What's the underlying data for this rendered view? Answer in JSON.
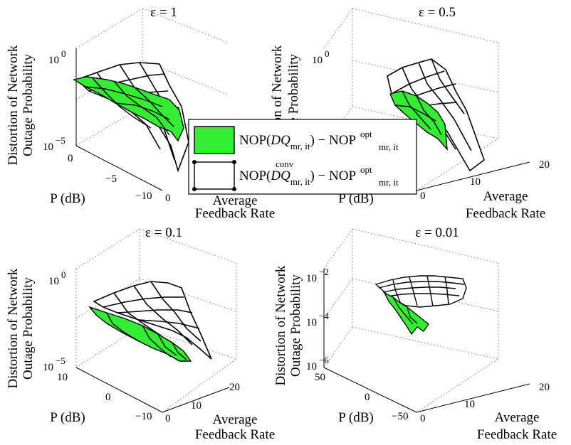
{
  "chart_data": [
    {
      "type": "surface",
      "title": "ε = 1",
      "zlabel_line1": "Distortion of Network",
      "zlabel_line2": "Outage Probability",
      "ylabel": "P (dB)",
      "xlabel_line1": "Average",
      "xlabel_line2": "Feedback Rate",
      "z_ticks": [
        {
          "base": "10",
          "exp": "0"
        },
        {
          "base": "10",
          "exp": "−5"
        }
      ],
      "p_ticks": [
        "0",
        "−5",
        "−10"
      ],
      "rate_ticks": [
        "0"
      ],
      "series": [
        {
          "name": "DQ",
          "style": "green-surface"
        },
        {
          "name": "DQconv",
          "style": "white-mesh"
        }
      ]
    },
    {
      "type": "surface",
      "title": "ε = 0.5",
      "zlabel_line1": "Distortion of Network",
      "zlabel_line2": "Outage Probability",
      "ylabel": "P (dB)",
      "xlabel_line1": "Average",
      "xlabel_line2": "Feedback Rate",
      "z_ticks": [
        {
          "base": "10",
          "exp": "0"
        }
      ],
      "p_ticks": [],
      "rate_ticks": [
        "0",
        "10",
        "20"
      ],
      "series": [
        {
          "name": "DQ",
          "style": "green-surface"
        },
        {
          "name": "DQconv",
          "style": "white-mesh"
        }
      ]
    },
    {
      "type": "surface",
      "title": "ε = 0.1",
      "zlabel_line1": "Distortion of Network",
      "zlabel_line2": "Outage Probability",
      "ylabel": "P (dB)",
      "xlabel_line1": "Average",
      "xlabel_line2": "Feedback Rate",
      "z_ticks": [
        {
          "base": "10",
          "exp": "0"
        },
        {
          "base": "10",
          "exp": "−5"
        }
      ],
      "p_ticks": [
        "10",
        "0",
        "−10"
      ],
      "rate_ticks": [
        "0",
        "10",
        "20"
      ],
      "series": [
        {
          "name": "DQ",
          "style": "green-surface"
        },
        {
          "name": "DQconv",
          "style": "white-mesh"
        }
      ]
    },
    {
      "type": "surface",
      "title": "ε = 0.01",
      "zlabel_line1": "Distortion of Network",
      "zlabel_line2": "Outage Probability",
      "ylabel": "P (dB)",
      "xlabel_line1": "Average",
      "xlabel_line2": "Feedback Rate",
      "z_ticks": [
        {
          "base": "10",
          "exp": "−2"
        },
        {
          "base": "10",
          "exp": "−4"
        },
        {
          "base": "10",
          "exp": "−6"
        }
      ],
      "p_ticks": [
        "50",
        "0",
        "−50"
      ],
      "rate_ticks": [
        "0",
        "10",
        "20"
      ],
      "series": [
        {
          "name": "DQ",
          "style": "green-surface"
        },
        {
          "name": "DQconv",
          "style": "white-mesh"
        }
      ]
    }
  ],
  "legend": {
    "entries": [
      {
        "prefix": "NOP(",
        "var": "DQ",
        "sup": "",
        "sub": "mr, it",
        "mid": ") − NOP",
        "rsup": "opt",
        "rsub": "mr, it",
        "swatch": "#33ee33"
      },
      {
        "prefix": "NOP(",
        "var": "DQ",
        "sup": "conv",
        "sub": "mr, it",
        "mid": ") − NOP",
        "rsup": "opt",
        "rsub": "mr, it",
        "swatch": "#ffffff"
      }
    ]
  },
  "colors": {
    "surface_green": "#33ee33",
    "mesh_white": "#ffffff",
    "edge": "#000000",
    "grid": "#777777"
  }
}
